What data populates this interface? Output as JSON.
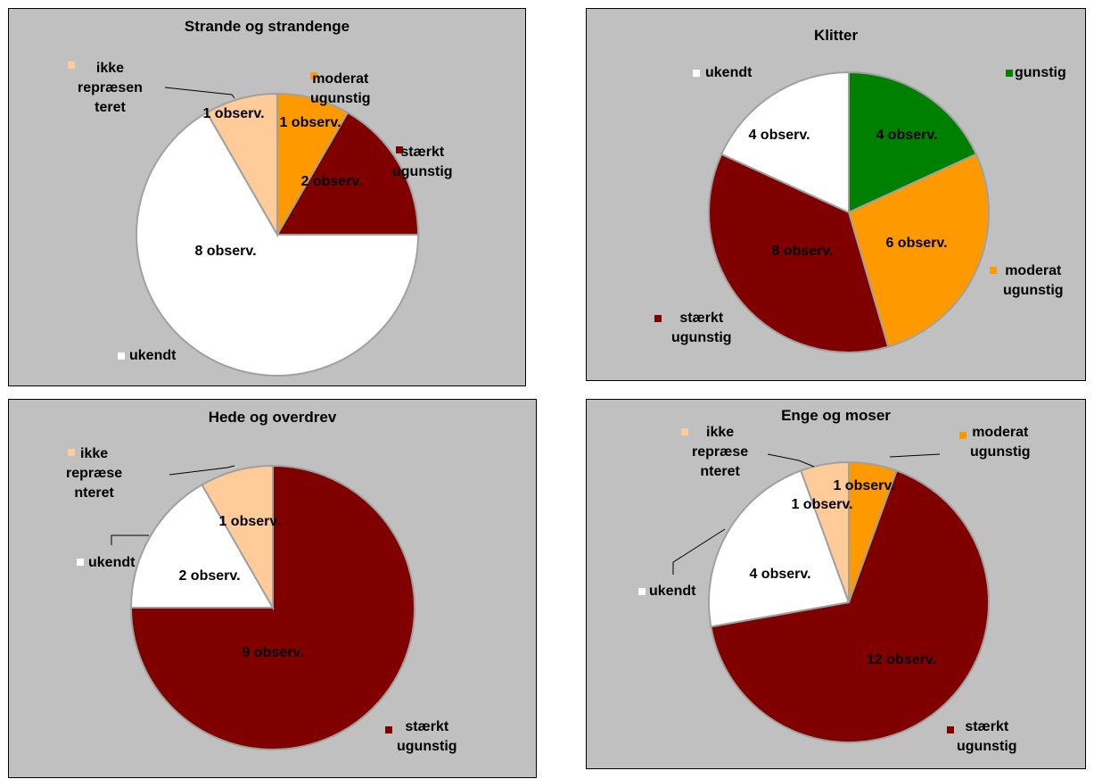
{
  "colors": {
    "gunstig": "#008000",
    "moderat": "#ff9900",
    "staerkt": "#800000",
    "ukendt": "#ffffff",
    "ikke": "#ffcc99"
  },
  "chart_data": [
    {
      "type": "pie",
      "title": "Strande og strandenge",
      "slices": [
        {
          "key": "moderat",
          "legend": [
            "moderat",
            "ugunstig"
          ],
          "value": 1,
          "label": "1 observ."
        },
        {
          "key": "staerkt",
          "legend": [
            "stærkt",
            "ugunstig"
          ],
          "value": 2,
          "label": "2 observ."
        },
        {
          "key": "ukendt",
          "legend": [
            "ukendt"
          ],
          "value": 8,
          "label": "8 observ."
        },
        {
          "key": "ikke",
          "legend": [
            "ikke",
            "repræsen",
            "teret"
          ],
          "value": 1,
          "label": "1 observ."
        }
      ]
    },
    {
      "type": "pie",
      "title": "Klitter",
      "slices": [
        {
          "key": "gunstig",
          "legend": [
            "gunstig"
          ],
          "value": 4,
          "label": "4 observ."
        },
        {
          "key": "moderat",
          "legend": [
            "moderat",
            "ugunstig"
          ],
          "value": 6,
          "label": "6 observ."
        },
        {
          "key": "staerkt",
          "legend": [
            "stærkt",
            "ugunstig"
          ],
          "value": 8,
          "label": "8 observ."
        },
        {
          "key": "ukendt",
          "legend": [
            "ukendt"
          ],
          "value": 4,
          "label": "4 observ."
        }
      ]
    },
    {
      "type": "pie",
      "title": "Hede og overdrev",
      "slices": [
        {
          "key": "staerkt",
          "legend": [
            "stærkt",
            "ugunstig"
          ],
          "value": 9,
          "label": "9 observ."
        },
        {
          "key": "ukendt",
          "legend": [
            "ukendt"
          ],
          "value": 2,
          "label": "2 observ."
        },
        {
          "key": "ikke",
          "legend": [
            "ikke",
            "repræse",
            "nteret"
          ],
          "value": 1,
          "label": "1 observ."
        }
      ]
    },
    {
      "type": "pie",
      "title": "Enge og moser",
      "slices": [
        {
          "key": "moderat",
          "legend": [
            "moderat",
            "ugunstig"
          ],
          "value": 1,
          "label": "1 observ."
        },
        {
          "key": "staerkt",
          "legend": [
            "stærkt",
            "ugunstig"
          ],
          "value": 12,
          "label": "12 observ."
        },
        {
          "key": "ukendt",
          "legend": [
            "ukendt"
          ],
          "value": 4,
          "label": "4 observ."
        },
        {
          "key": "ikke",
          "legend": [
            "ikke",
            "repræse",
            "nteret"
          ],
          "value": 1,
          "label": "1 observ."
        }
      ]
    }
  ]
}
